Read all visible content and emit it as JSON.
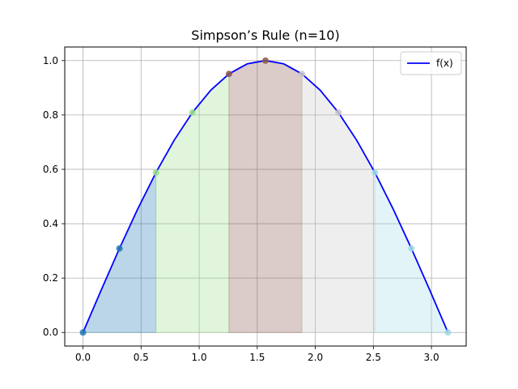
{
  "chart_data": {
    "type": "area",
    "title": "Simpson’s Rule (n=10)",
    "xlabel": "",
    "ylabel": "",
    "xlim": [
      -0.157,
      3.299
    ],
    "ylim": [
      -0.05,
      1.05
    ],
    "grid": true,
    "legend_position": "top-right",
    "x_ticks": [
      0.0,
      0.5,
      1.0,
      1.5,
      2.0,
      2.5,
      3.0
    ],
    "x_tick_labels": [
      "0.0",
      "0.5",
      "1.0",
      "1.5",
      "2.0",
      "2.5",
      "3.0"
    ],
    "y_ticks": [
      0.0,
      0.2,
      0.4,
      0.6,
      0.8,
      1.0
    ],
    "y_tick_labels": [
      "0.0",
      "0.2",
      "0.4",
      "0.6",
      "0.8",
      "1.0"
    ],
    "series": [
      {
        "name": "f(x)",
        "color": "#0000ff",
        "x": [
          0.0,
          0.157,
          0.314,
          0.471,
          0.628,
          0.785,
          0.942,
          1.1,
          1.257,
          1.414,
          1.571,
          1.728,
          1.885,
          2.042,
          2.199,
          2.356,
          2.513,
          2.67,
          2.827,
          2.985,
          3.142
        ],
        "y": [
          0.0,
          0.156,
          0.309,
          0.454,
          0.588,
          0.707,
          0.809,
          0.891,
          0.951,
          0.988,
          1.0,
          0.988,
          0.951,
          0.891,
          0.809,
          0.707,
          0.588,
          0.454,
          0.309,
          0.156,
          0.0
        ]
      }
    ],
    "segments": [
      {
        "x_start": 0.0,
        "x_end": 0.628,
        "color": "#1f77b4"
      },
      {
        "x_start": 0.628,
        "x_end": 1.257,
        "color": "#98df8a"
      },
      {
        "x_start": 1.257,
        "x_end": 1.885,
        "color": "#8c564b"
      },
      {
        "x_start": 1.885,
        "x_end": 2.513,
        "color": "#c7c7c7"
      },
      {
        "x_start": 2.513,
        "x_end": 3.142,
        "color": "#9edae5"
      }
    ],
    "points": [
      {
        "x": 0.0,
        "y": 0.0,
        "color": "#1f77b4"
      },
      {
        "x": 0.314,
        "y": 0.309,
        "color": "#1f77b4"
      },
      {
        "x": 0.628,
        "y": 0.588,
        "color": "#98df8a"
      },
      {
        "x": 0.942,
        "y": 0.809,
        "color": "#98df8a"
      },
      {
        "x": 1.257,
        "y": 0.951,
        "color": "#8c564b"
      },
      {
        "x": 1.571,
        "y": 1.0,
        "color": "#8c564b"
      },
      {
        "x": 1.885,
        "y": 0.951,
        "color": "#c7c7c7"
      },
      {
        "x": 2.199,
        "y": 0.809,
        "color": "#c7c7c7"
      },
      {
        "x": 2.513,
        "y": 0.588,
        "color": "#9edae5"
      },
      {
        "x": 2.827,
        "y": 0.309,
        "color": "#9edae5"
      },
      {
        "x": 3.142,
        "y": 0.0,
        "color": "#9edae5"
      }
    ]
  }
}
